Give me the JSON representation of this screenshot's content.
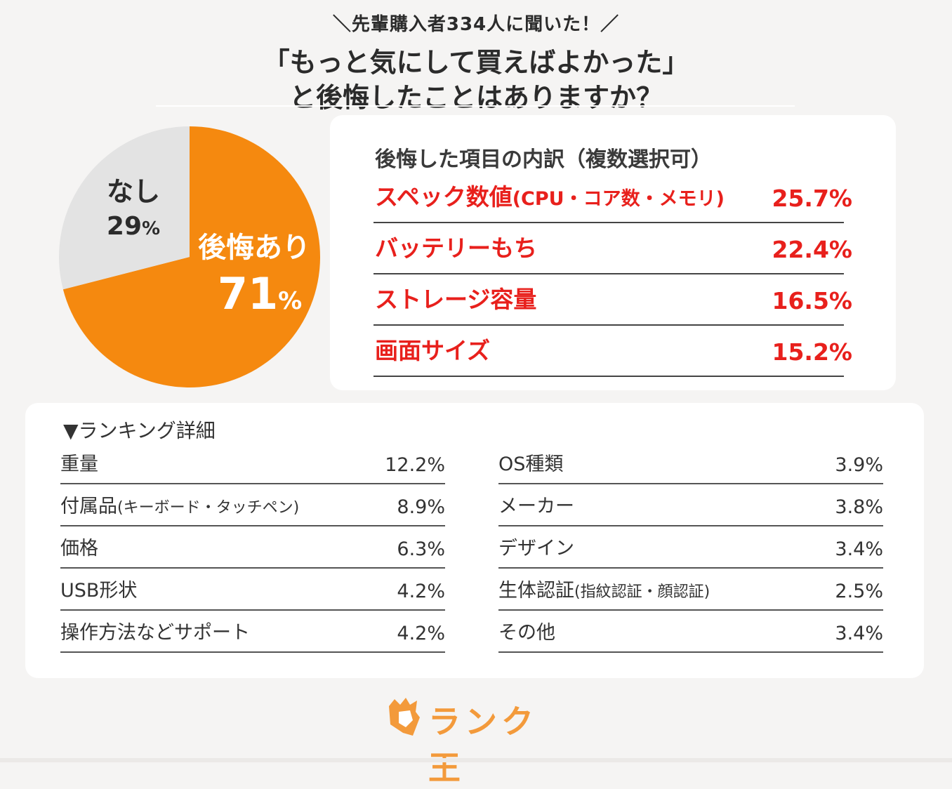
{
  "header": {
    "subtitle": "＼先輩購入者334人に聞いた！／",
    "title_line1": "「もっと気にして買えばよかった」",
    "title_line2": "と後悔したことはありますか？"
  },
  "chart_data": [
    {
      "type": "pie",
      "slices": [
        {
          "label": "後悔あり",
          "value": 71,
          "value_text": "71",
          "unit": "%",
          "color": "#f5890f"
        },
        {
          "label": "なし",
          "value": 29,
          "value_text": "29",
          "unit": "%",
          "color": "#e3e3e3"
        }
      ]
    },
    {
      "type": "table",
      "title": "後悔した項目の内訳（複数選択可）",
      "rows": [
        {
          "label": "スペック数値",
          "note": "(CPU・コア数・メモリ)",
          "value": "25.7%"
        },
        {
          "label": "バッテリーもち",
          "note": "",
          "value": "22.4%"
        },
        {
          "label": "ストレージ容量",
          "note": "",
          "value": "16.5%"
        },
        {
          "label": "画面サイズ",
          "note": "",
          "value": "15.2%"
        }
      ]
    },
    {
      "type": "table",
      "title": "▼ランキング詳細",
      "left_rows": [
        {
          "label": "重量",
          "note": "",
          "value": "12.2%"
        },
        {
          "label": "付属品",
          "note": "(キーボード・タッチペン)",
          "value": "8.9%"
        },
        {
          "label": "価格",
          "note": "",
          "value": "6.3%"
        },
        {
          "label": "USB形状",
          "note": "",
          "value": "4.2%"
        },
        {
          "label": "操作方法などサポート",
          "note": "",
          "value": "4.2%"
        }
      ],
      "right_rows": [
        {
          "label": "OS種類",
          "note": "",
          "value": "3.9%"
        },
        {
          "label": "メーカー",
          "note": "",
          "value": "3.8%"
        },
        {
          "label": "デザイン",
          "note": "",
          "value": "3.4%"
        },
        {
          "label": "生体認証",
          "note": "(指紋認証・顔認証)",
          "value": "2.5%"
        },
        {
          "label": "その他",
          "note": "",
          "value": "3.4%"
        }
      ]
    }
  ],
  "brand": {
    "name": "ランク王",
    "icon": "crown-shield-icon",
    "color": "#f39a3b"
  },
  "colors": {
    "accent_red": "#e8201c",
    "pie_orange": "#f5890f",
    "pie_gray": "#e3e3e3"
  }
}
